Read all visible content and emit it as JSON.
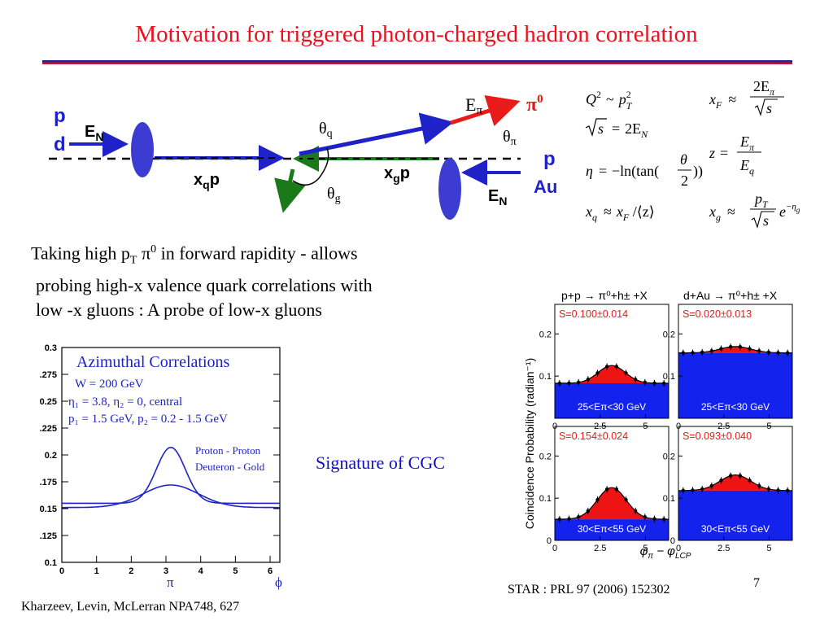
{
  "slide": {
    "title": "Motivation for triggered photon-charged hadron correlation",
    "page_number": "7",
    "reference_left": "Kharzeev, Levin, McLerran NPA748, 627",
    "reference_right": "STAR : PRL 97 (2006) 152302",
    "signature_text": "Signature of CGC",
    "colors": {
      "title": "#e8121c",
      "rule_blue": "#23238e",
      "rule_red": "#c8102e",
      "proton_blue": "#1e22c8",
      "nucleon_oval": "#3c3cd2",
      "gluon_green": "#1a7a1a",
      "pion_red": "#e81a1a"
    }
  },
  "diagram": {
    "label_p_left": "p",
    "label_d": "d",
    "label_EN_left": "E",
    "label_EN_left_sub": "N",
    "label_xqp": "x",
    "label_xqp_sub": "q",
    "label_xqp_tail": "p",
    "label_xgp": "x",
    "label_xgp_sub": "g",
    "label_xgp_tail": "p",
    "label_p_right": "p",
    "label_Au": "Au",
    "label_EN_right": "E",
    "label_EN_right_sub": "N",
    "label_Epi": "E",
    "label_Epi_sub": "π",
    "label_pi0": "π",
    "label_pi0_sup": "0",
    "label_theta_q": "θ",
    "label_theta_q_sub": "q",
    "label_theta_pi": "θ",
    "label_theta_pi_sub": "π",
    "label_theta_g": "θ",
    "label_theta_g_sub": "g"
  },
  "formulas": {
    "q2": {
      "lhs": "Q",
      "lhs_sup": "2",
      "rel": "~",
      "rhs": "p",
      "rhs_sup": "2",
      "rhs_sub": "T"
    },
    "sqrt_s": {
      "lhs": "s",
      "rel": "=",
      "rhs": "2E",
      "rhs_sub": "N"
    },
    "eta": {
      "lhs": "η",
      "rel": "=",
      "rhs_pre": "−ln(tan(",
      "num": "θ",
      "den": "2",
      "rhs_post": "))"
    },
    "xq": {
      "lhs": "x",
      "lhs_sub": "q",
      "rel": "≈",
      "rhs": "x",
      "rhs_sub": "F",
      "rhs_post": " /⟨z⟩"
    },
    "xF": {
      "lhs": "x",
      "lhs_sub": "F",
      "rel": "≈",
      "num": "2E",
      "num_sub": "π",
      "den": "s"
    },
    "z": {
      "lhs": "z",
      "rel": "=",
      "num": "E",
      "num_sub": "π",
      "den": "E",
      "den_sub": "q"
    },
    "xg": {
      "lhs": "x",
      "lhs_sub": "g",
      "rel": "≈",
      "num": "p",
      "num_sub": "T",
      "den": "s",
      "tail": "e",
      "tail_sup": "−η",
      "tail_sup_sub": "g"
    }
  },
  "bullet": {
    "line1_pre": "Taking high p",
    "line1_sub": "T",
    "line1_mid": " π",
    "line1_sup": "0",
    "line1_post": " in forward rapidity - allows",
    "line2": "probing high-x valence quark correlations with",
    "line3": "low -x gluons : A probe of low-x gluons"
  },
  "left_chart": {
    "title": "Azimuthal Correlations",
    "line1": "W = 200 GeV",
    "line2": "η₁ = 3.8, η₂ = 0, central",
    "line3": "p₁ = 1.5  GeV, p₂ = 0.2 - 1.5 GeV",
    "legend": [
      "Proton - Proton",
      "Deuteron - Gold"
    ]
  },
  "chart_data": [
    {
      "type": "line",
      "title": "Azimuthal Correlations",
      "xlim": [
        0,
        6.28
      ],
      "ylim": [
        0.1,
        0.3
      ],
      "x_ticks": [
        "0",
        "1",
        "2",
        "3",
        "4",
        "5",
        "6"
      ],
      "y_ticks": [
        "0.1",
        ".125",
        "0.15",
        ".175",
        "0.2",
        ".225",
        "0.25",
        ".275",
        "0.3"
      ],
      "x_tick_values": [
        0,
        1,
        2,
        3,
        4,
        5,
        6
      ],
      "y_tick_values": [
        0.1,
        0.125,
        0.15,
        0.175,
        0.2,
        0.225,
        0.25,
        0.275,
        0.3
      ],
      "x_marker_labels": [
        "π",
        "ϕ"
      ],
      "series": [
        {
          "name": "Proton - Proton",
          "peak_x": 3.14,
          "base": 0.155,
          "peak": 0.207,
          "sigma": 0.42
        },
        {
          "name": "Deuteron - Gold",
          "peak_x": 3.14,
          "base": 0.151,
          "peak": 0.172,
          "sigma": 0.8
        }
      ]
    },
    {
      "type": "area",
      "title": "",
      "ylabel": "Coincidence Probability (radian⁻¹)",
      "xlabel": "φπ − φLCP",
      "xlabel_parts": {
        "a": "φ",
        "a_sub": "π",
        "rel": " − ",
        "b": "φ",
        "b_sub": "LCP"
      },
      "header_left": "p+p → π⁰+h± +X",
      "header_right": "d+Au → π⁰+h± +X",
      "xlim": [
        0,
        6.28
      ],
      "ylim": [
        0,
        0.27
      ],
      "x_ticks": [
        "0",
        "2.5",
        "5"
      ],
      "x_tick_values": [
        0,
        2.5,
        5
      ],
      "y_ticks": [
        "0",
        "0.1",
        "0.2"
      ],
      "y_tick_values": [
        0,
        0.1,
        0.2
      ],
      "panels": [
        {
          "label": "S=0.100±0.014",
          "range": "25<Eπ<30 GeV",
          "system": "p+p",
          "base": 0.083,
          "peak": 0.125,
          "peak_x": 3.14,
          "sigma": 0.75
        },
        {
          "label": "S=0.020±0.013",
          "range": "25<Eπ<30 GeV",
          "system": "d+Au",
          "base": 0.155,
          "peak": 0.17,
          "peak_x": 3.14,
          "sigma": 0.85
        },
        {
          "label": "S=0.154±0.024",
          "range": "30<Eπ<55 GeV",
          "system": "p+p",
          "base": 0.05,
          "peak": 0.125,
          "peak_x": 3.14,
          "sigma": 0.8
        },
        {
          "label": "S=0.093±0.040",
          "range": "30<Eπ<55 GeV",
          "system": "d+Au",
          "base": 0.118,
          "peak": 0.155,
          "peak_x": 3.14,
          "sigma": 0.85
        }
      ]
    }
  ]
}
